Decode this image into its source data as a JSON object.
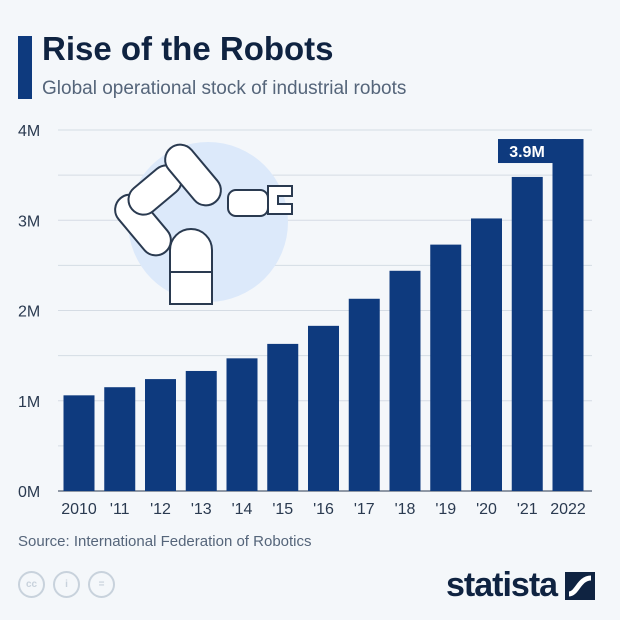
{
  "header": {
    "title": "Rise of the Robots",
    "subtitle": "Global operational stock of industrial robots"
  },
  "footer": {
    "source": "Source: International Federation of Robotics",
    "brand": "statista",
    "license_icons": [
      "cc-icon",
      "attribution-icon",
      "no-derivatives-icon"
    ]
  },
  "colors": {
    "bar": "#0e3a7e",
    "accent": "#0e3a7e",
    "illustration_bg": "#dce9fa"
  },
  "chart_data": {
    "type": "bar",
    "categories": [
      "2010",
      "'11",
      "'12",
      "'13",
      "'14",
      "'15",
      "'16",
      "'17",
      "'18",
      "'19",
      "'20",
      "'21",
      "2022"
    ],
    "values": [
      1.06,
      1.15,
      1.24,
      1.33,
      1.47,
      1.63,
      1.83,
      2.13,
      2.44,
      2.73,
      3.02,
      3.48,
      3.9
    ],
    "unit": "M",
    "ylim": [
      0,
      4
    ],
    "yticks": [
      "0M",
      "1M",
      "2M",
      "3M",
      "4M"
    ],
    "grid": true,
    "data_labels": [
      {
        "category": "2022",
        "text": "3.9M"
      }
    ]
  }
}
